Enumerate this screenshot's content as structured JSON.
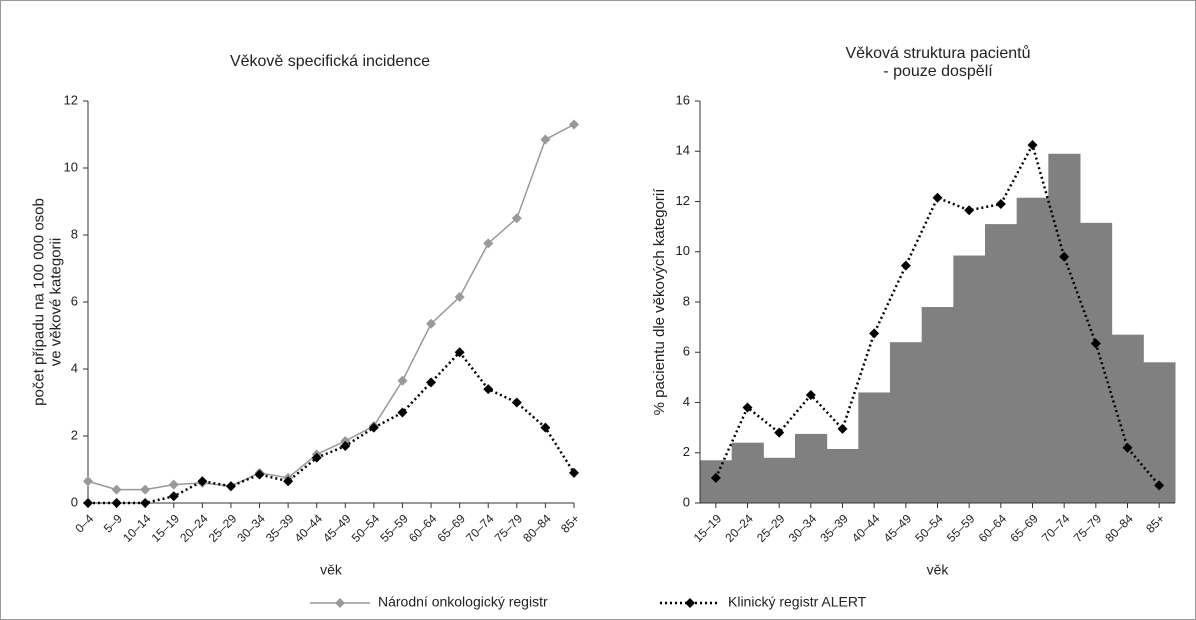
{
  "chart_data": [
    {
      "type": "line",
      "title": "Věkově specifická incidence",
      "ylabel": [
        "počet případu na 100 000 osob",
        "ve věkové kategorii"
      ],
      "xlabel": "věk",
      "categories": [
        "0–4",
        "5–9",
        "10–14",
        "15–19",
        "20–24",
        "25–29",
        "30–34",
        "35–39",
        "40–44",
        "45–49",
        "50–54",
        "55–59",
        "60–64",
        "65–69",
        "70–74",
        "75–79",
        "80–84",
        "85+"
      ],
      "ylim": [
        0,
        12
      ],
      "yticks": [
        0,
        2,
        4,
        6,
        8,
        10,
        12
      ],
      "series": [
        {
          "name": "Národní onkologický registr",
          "color": "#999999",
          "dash": "solid",
          "values": [
            0.65,
            0.4,
            0.4,
            0.55,
            0.6,
            0.5,
            0.9,
            0.75,
            1.45,
            1.85,
            2.3,
            3.65,
            5.35,
            6.15,
            7.75,
            8.5,
            10.85,
            11.3
          ]
        },
        {
          "name": "Klinický registr ALERT",
          "color": "#000000",
          "dash": "dotted",
          "values": [
            0,
            0,
            0,
            0.2,
            0.65,
            0.5,
            0.85,
            0.65,
            1.35,
            1.7,
            2.25,
            2.7,
            3.6,
            4.5,
            3.4,
            3.0,
            2.25,
            0.9
          ]
        }
      ]
    },
    {
      "type": "bar",
      "title": [
        "Věková struktura pacientů",
        "- pouze dospělí"
      ],
      "ylabel": [
        "% pacientu dle věkových kategorií"
      ],
      "xlabel": "věk",
      "categories": [
        "15–19",
        "20–24",
        "25–29",
        "30–34",
        "35–39",
        "40–44",
        "45–49",
        "50–54",
        "55–59",
        "60–64",
        "65–69",
        "70–74",
        "75–79",
        "80–84",
        "85+"
      ],
      "ylim": [
        0,
        16
      ],
      "yticks": [
        0,
        2,
        4,
        6,
        8,
        10,
        12,
        14,
        16
      ],
      "color": "#808080",
      "values": [
        1.7,
        2.4,
        1.8,
        2.75,
        2.15,
        4.4,
        6.4,
        7.8,
        9.85,
        11.1,
        12.15,
        13.9,
        11.15,
        6.7,
        5.6
      ],
      "line": {
        "color": "#000000",
        "dash": "dotted",
        "values": [
          1.0,
          3.8,
          2.8,
          4.3,
          2.95,
          6.75,
          9.45,
          12.15,
          11.65,
          11.9,
          14.25,
          9.8,
          6.35,
          2.2,
          0.7
        ]
      }
    }
  ]
}
